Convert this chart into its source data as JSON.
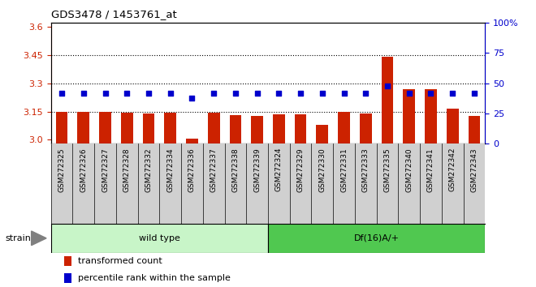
{
  "title": "GDS3478 / 1453761_at",
  "samples": [
    "GSM272325",
    "GSM272326",
    "GSM272327",
    "GSM272328",
    "GSM272332",
    "GSM272334",
    "GSM272336",
    "GSM272337",
    "GSM272338",
    "GSM272339",
    "GSM272324",
    "GSM272329",
    "GSM272330",
    "GSM272331",
    "GSM272333",
    "GSM272335",
    "GSM272340",
    "GSM272341",
    "GSM272342",
    "GSM272343"
  ],
  "red_values": [
    3.15,
    3.147,
    3.148,
    3.143,
    3.141,
    3.143,
    3.005,
    3.143,
    3.13,
    3.126,
    3.136,
    3.136,
    3.08,
    3.148,
    3.141,
    3.44,
    3.27,
    3.27,
    3.165,
    3.128
  ],
  "blue_values": [
    42,
    42,
    42,
    42,
    42,
    42,
    38,
    42,
    42,
    42,
    42,
    42,
    42,
    42,
    42,
    48,
    42,
    42,
    42,
    42
  ],
  "group1_count": 10,
  "group1_label": "wild type",
  "group2_label": "Df(16)A/+",
  "group1_color": "#c8f5c8",
  "group2_color": "#50c850",
  "plot_bg_color": "#ffffff",
  "tick_area_color": "#d0d0d0",
  "ylim_left": [
    2.98,
    3.62
  ],
  "ylim_right": [
    0,
    100
  ],
  "yticks_left": [
    3.0,
    3.15,
    3.3,
    3.45,
    3.6
  ],
  "yticks_right": [
    0,
    25,
    50,
    75,
    100
  ],
  "hlines": [
    3.15,
    3.3,
    3.45
  ],
  "bar_color": "#cc2200",
  "dot_color": "#0000cc",
  "ylabel_left_color": "#cc2200",
  "ylabel_right_color": "#0000cc",
  "strain_label": "strain",
  "legend_bar": "transformed count",
  "legend_dot": "percentile rank within the sample",
  "bar_width": 0.55
}
